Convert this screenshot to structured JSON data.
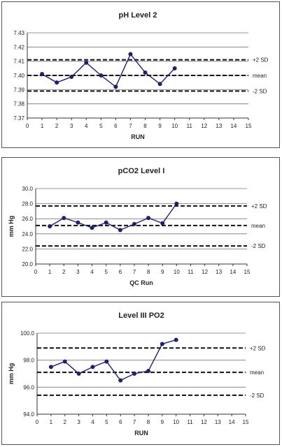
{
  "chart_data": [
    {
      "type": "line",
      "title": "pH Level 2",
      "xlabel": "RUN",
      "ylabel": "",
      "x": [
        1,
        2,
        3,
        4,
        5,
        6,
        7,
        8,
        9,
        10
      ],
      "xlim": [
        0,
        15
      ],
      "xticks": [
        "0",
        "1",
        "2",
        "3",
        "4",
        "5",
        "6",
        "7",
        "8",
        "9",
        "10",
        "11",
        "12",
        "13",
        "14",
        "15"
      ],
      "ylim": [
        7.37,
        7.43
      ],
      "yticks": [
        "7.37",
        "7.38",
        "7.39",
        "7.40",
        "7.41",
        "7.42",
        "7.43"
      ],
      "values": [
        7.401,
        7.395,
        7.399,
        7.409,
        7.4,
        7.392,
        7.415,
        7.402,
        7.394,
        7.405
      ],
      "control_lines": [
        {
          "label": "+2 SD",
          "value": 7.411
        },
        {
          "label": "mean",
          "value": 7.4
        },
        {
          "label": "-2 SD",
          "value": 7.389
        }
      ],
      "grid": true,
      "color": "#1f1f6e"
    },
    {
      "type": "line",
      "title": "pCO2 Level I",
      "xlabel": "QC Run",
      "ylabel": "mm Hg",
      "x": [
        1,
        2,
        3,
        4,
        5,
        6,
        7,
        8,
        9,
        10
      ],
      "xlim": [
        0,
        15
      ],
      "xticks": [
        "0",
        "1",
        "2",
        "3",
        "4",
        "5",
        "6",
        "7",
        "8",
        "9",
        "10",
        "11",
        "12",
        "13",
        "14",
        "15"
      ],
      "ylim": [
        20,
        30
      ],
      "yticks": [
        "20.0",
        "22.0",
        "24.0",
        "26.0",
        "28.0",
        "30.0"
      ],
      "values": [
        25.0,
        26.1,
        25.5,
        24.8,
        25.5,
        24.5,
        25.3,
        26.1,
        25.4,
        28.0
      ],
      "control_lines": [
        {
          "label": "+2 SD",
          "value": 27.7
        },
        {
          "label": "mean",
          "value": 25.1
        },
        {
          "label": "-2 SD",
          "value": 22.4
        }
      ],
      "grid": true,
      "color": "#1f1f6e"
    },
    {
      "type": "line",
      "title": "Level III PO2",
      "xlabel": "RUN",
      "ylabel": "mm Hg",
      "x": [
        1,
        2,
        3,
        4,
        5,
        6,
        7,
        8,
        9,
        10
      ],
      "xlim": [
        0,
        15
      ],
      "xticks": [
        "0",
        "1",
        "2",
        "3",
        "4",
        "5",
        "6",
        "7",
        "8",
        "9",
        "10",
        "11",
        "12",
        "13",
        "14",
        "15"
      ],
      "ylim": [
        94,
        100
      ],
      "yticks": [
        "94.0",
        "96.0",
        "98.0",
        "100.0"
      ],
      "values": [
        97.5,
        97.9,
        97.0,
        97.5,
        97.9,
        96.5,
        97.0,
        97.2,
        99.2,
        99.5
      ],
      "control_lines": [
        {
          "label": "+2 SD",
          "value": 98.9
        },
        {
          "label": "mean",
          "value": 97.1
        },
        {
          "label": "-2 SD",
          "value": 95.4
        }
      ],
      "grid": true,
      "color": "#1f1f6e"
    }
  ]
}
